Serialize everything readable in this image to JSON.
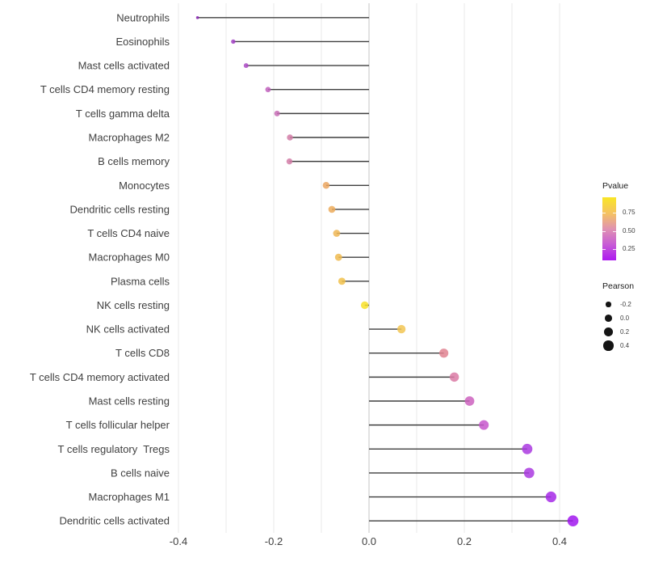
{
  "chart_data": {
    "type": "lollipop",
    "title": "",
    "xlabel": "",
    "ylabel": "",
    "xlim": [
      -0.44,
      0.47
    ],
    "x_ticks": [
      -0.4,
      -0.2,
      0.0,
      0.2,
      0.4
    ],
    "x_tick_labels": [
      "-0.4",
      "-0.2",
      "0.0",
      "0.2",
      "0.4"
    ],
    "grid_minor_step": 0.1,
    "grid_on": true,
    "categories": [
      "Neutrophils",
      "Eosinophils",
      "Mast cells activated",
      "T cells CD4 memory resting",
      "T cells gamma delta",
      "Macrophages M2",
      "B cells memory",
      "Monocytes",
      "Dendritic cells resting",
      "T cells CD4 naive",
      "Macrophages M0",
      "Plasma cells",
      "NK cells resting",
      "NK cells activated",
      "T cells CD8",
      "T cells CD4 memory activated",
      "Mast cells resting",
      "T cells follicular helper",
      "T cells regulatory  Tregs",
      "B cells naive",
      "Macrophages M1",
      "Dendritic cells activated"
    ],
    "series": [
      {
        "name": "Pearson",
        "values": [
          -0.36,
          -0.285,
          -0.258,
          -0.212,
          -0.193,
          -0.166,
          -0.167,
          -0.09,
          -0.078,
          -0.068,
          -0.064,
          -0.057,
          -0.009,
          0.068,
          0.157,
          0.179,
          0.211,
          0.241,
          0.332,
          0.336,
          0.382,
          0.428
        ]
      }
    ],
    "point_colors": [
      "#8520B0",
      "#A13FC3",
      "#AD4BC5",
      "#C161BD",
      "#C76CB5",
      "#D27DA7",
      "#D27DA7",
      "#EBA660",
      "#ECAB5C",
      "#EFB654",
      "#F0BB50",
      "#F1C14B",
      "#F8E128",
      "#F2C553",
      "#E18290",
      "#DB7AA4",
      "#CD62BE",
      "#C756CC",
      "#AA3AE1",
      "#AA3AE1",
      "#A629E7",
      "#A117EF"
    ],
    "stem_color": "#3F3F3F",
    "zero_line_color": "#C9C9C9",
    "grid_color": "#E8E8E8",
    "axis_text_color": "#404040",
    "legend": {
      "position": "right",
      "pvalue": {
        "title": "Pvalue",
        "tick_labels": [
          "0.75",
          "0.50",
          "0.25"
        ],
        "gradient": [
          "#F9E626",
          "#F5C360",
          "#E092B1",
          "#C75BD6",
          "#AD19F0"
        ]
      },
      "pearson": {
        "title": "Pearson",
        "tick_values": [
          -0.2,
          0.0,
          0.2,
          0.4
        ],
        "tick_labels": [
          "-0.2",
          "0.0",
          "0.2",
          "0.4"
        ],
        "dot_color": "#151515"
      }
    }
  }
}
